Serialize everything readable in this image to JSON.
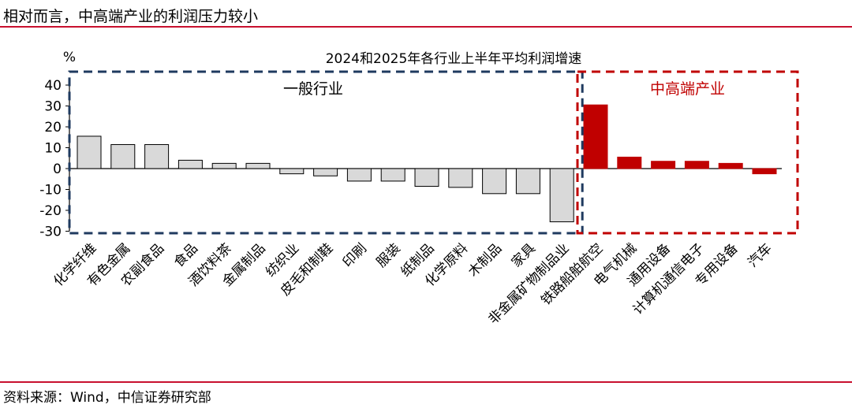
{
  "header": {
    "title": "相对而言，中高端产业的利润压力较小"
  },
  "footer": {
    "source": "资料来源：Wind，中信证券研究部"
  },
  "colors": {
    "general": "#d9d9d9",
    "high_end": "#c00000",
    "general_box": "#1f3a5f",
    "high_end_box": "#c00000",
    "rule": "#c8102e"
  },
  "chart_data": {
    "type": "bar",
    "title": "2024和2025年各行业上半年平均利润增速",
    "ylabel": "%",
    "ylim": [
      -30,
      40
    ],
    "yticks": [
      40,
      30,
      20,
      10,
      0,
      -10,
      -20,
      -30
    ],
    "groups": [
      {
        "label": "一般行业",
        "color": "#d9d9d9",
        "box_color": "#1f3a5f",
        "categories": [
          "化学纤维",
          "有色金属",
          "农副食品",
          "食品",
          "酒饮料茶",
          "金属制品",
          "纺织业",
          "皮毛和制鞋",
          "印刷",
          "服装",
          "纸制品",
          "化学原料",
          "木制品",
          "家具",
          "非金属矿物制品业"
        ],
        "values": [
          15.5,
          11.5,
          11.5,
          4.0,
          2.5,
          2.5,
          -2.5,
          -3.5,
          -6.0,
          -6.0,
          -8.5,
          -9.0,
          -12.0,
          -12.0,
          -25.5
        ]
      },
      {
        "label": "中高端产业",
        "color": "#c00000",
        "box_color": "#c00000",
        "categories": [
          "铁路船舶航空",
          "电气机械",
          "通用设备",
          "计算机通信电子",
          "专用设备",
          "汽车"
        ],
        "values": [
          30.5,
          5.5,
          3.5,
          3.5,
          2.5,
          -2.5
        ]
      }
    ]
  }
}
